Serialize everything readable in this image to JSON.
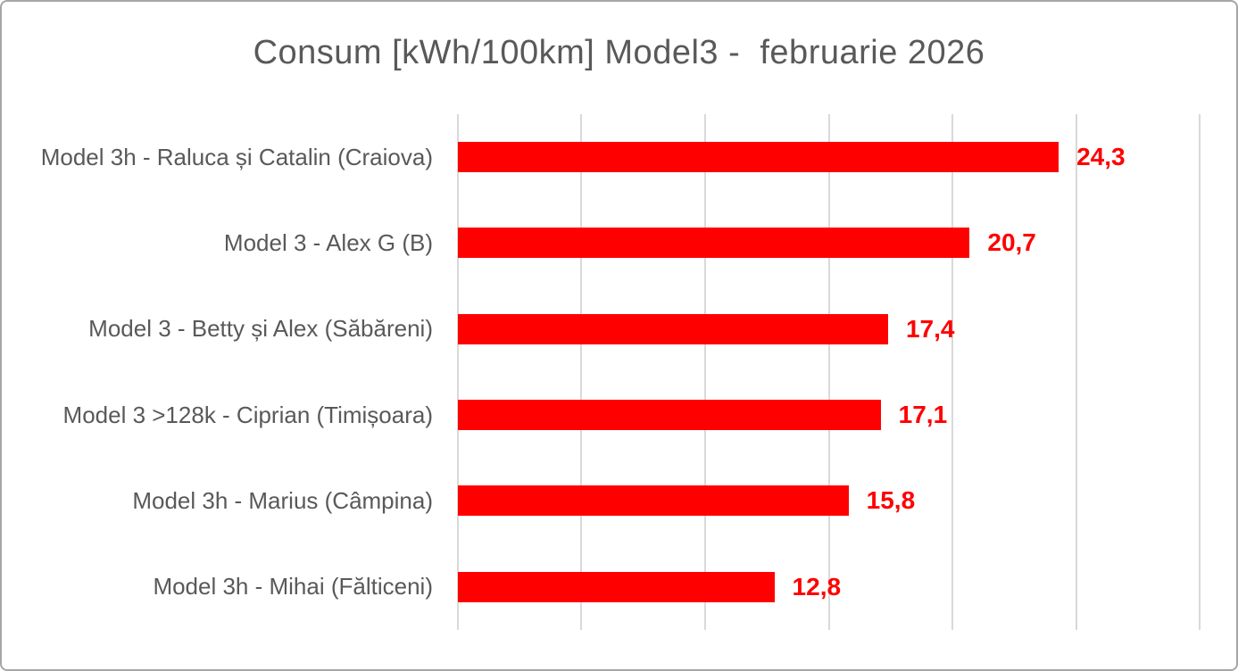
{
  "chart_data": {
    "type": "bar",
    "orientation": "horizontal",
    "title": "Consum [kWh/100km] Model3 -  februarie 2026",
    "categories": [
      "Model 3h - Raluca și Catalin (Craiova)",
      "Model 3 - Alex G (B)",
      "Model 3 - Betty și Alex (Săbăreni)",
      "Model 3 >128k - Ciprian (Timișoara)",
      "Model 3h - Marius (Câmpina)",
      "Model 3h - Mihai (Fălticeni)"
    ],
    "values": [
      24.3,
      20.7,
      17.4,
      17.1,
      15.8,
      12.8
    ],
    "value_labels": [
      "24,3",
      "20,7",
      "17,4",
      "17,1",
      "15,8",
      "12,8"
    ],
    "xlabel": "",
    "ylabel": "",
    "xlim": [
      0,
      30
    ],
    "gridline_step": 5,
    "grid": true,
    "legend_position": "none",
    "colors": {
      "bar": "#ff0000",
      "value_label": "#ff0000",
      "title": "#595959",
      "category_label": "#595959",
      "gridline": "#d9d9d9",
      "frame_border": "#a6a6a6",
      "background": "#ffffff"
    }
  }
}
